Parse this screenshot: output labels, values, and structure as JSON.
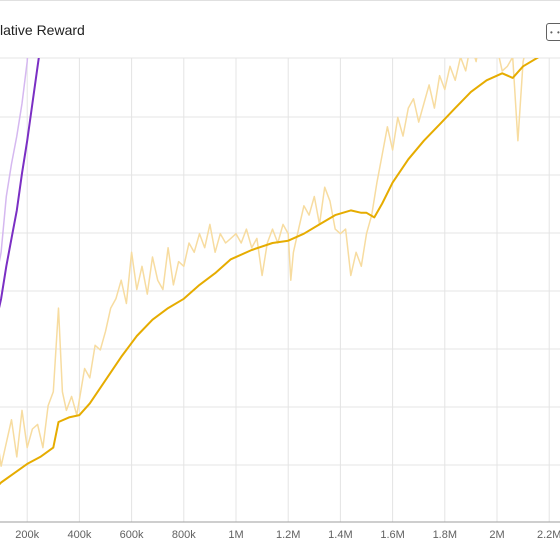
{
  "card": {
    "title": "lative Reward",
    "menu_icon": "expand-icon"
  },
  "chart_data": {
    "type": "line",
    "title": "lative Reward",
    "xlabel": "",
    "ylabel": "",
    "x_ticks": [
      "200k",
      "400k",
      "600k",
      "800k",
      "1M",
      "1.2M",
      "1.4M",
      "1.6M",
      "1.8M",
      "2M",
      "2.2M"
    ],
    "x_tick_values": [
      200000,
      400000,
      600000,
      800000,
      1000000,
      1200000,
      1400000,
      1600000,
      1800000,
      2000000,
      2200000
    ],
    "xlim": [
      0,
      2400000
    ],
    "ylim": [
      0,
      100
    ],
    "grid": true,
    "series": [
      {
        "color": "#e6ac00",
        "raw_color": "#f7dca0",
        "smoothed": [
          [
            0,
            2
          ],
          [
            50000,
            5.5
          ],
          [
            100000,
            8.5
          ],
          [
            150000,
            10.5
          ],
          [
            200000,
            12.5
          ],
          [
            250000,
            14
          ],
          [
            300000,
            16
          ],
          [
            320000,
            21.5
          ],
          [
            360000,
            22.5
          ],
          [
            400000,
            23
          ],
          [
            440000,
            25.5
          ],
          [
            500000,
            30.5
          ],
          [
            560000,
            35.5
          ],
          [
            620000,
            40
          ],
          [
            680000,
            43.5
          ],
          [
            740000,
            46
          ],
          [
            800000,
            48
          ],
          [
            860000,
            51
          ],
          [
            920000,
            53.5
          ],
          [
            980000,
            56.5
          ],
          [
            1060000,
            58.5
          ],
          [
            1140000,
            60
          ],
          [
            1200000,
            60.5
          ],
          [
            1260000,
            62
          ],
          [
            1320000,
            64
          ],
          [
            1380000,
            66
          ],
          [
            1440000,
            67
          ],
          [
            1480000,
            66.5
          ],
          [
            1500000,
            66.5
          ],
          [
            1530000,
            65.5
          ],
          [
            1560000,
            68.5
          ],
          [
            1600000,
            73
          ],
          [
            1660000,
            78
          ],
          [
            1720000,
            82
          ],
          [
            1780000,
            85.5
          ],
          [
            1840000,
            89
          ],
          [
            1900000,
            92.5
          ],
          [
            1960000,
            95
          ],
          [
            2020000,
            96.5
          ],
          [
            2060000,
            95.5
          ],
          [
            2100000,
            98
          ],
          [
            2160000,
            100
          ],
          [
            2220000,
            102.5
          ],
          [
            2280000,
            105
          ],
          [
            2340000,
            107.5
          ],
          [
            2400000,
            108
          ]
        ],
        "raw": [
          [
            0,
            6
          ],
          [
            20000,
            15
          ],
          [
            40000,
            18
          ],
          [
            60000,
            13
          ],
          [
            80000,
            20
          ],
          [
            100000,
            12
          ],
          [
            120000,
            17
          ],
          [
            140000,
            22
          ],
          [
            160000,
            14
          ],
          [
            180000,
            24
          ],
          [
            200000,
            16
          ],
          [
            220000,
            20
          ],
          [
            240000,
            21
          ],
          [
            260000,
            16
          ],
          [
            280000,
            25
          ],
          [
            300000,
            28
          ],
          [
            320000,
            46
          ],
          [
            335000,
            28
          ],
          [
            350000,
            24
          ],
          [
            370000,
            27
          ],
          [
            390000,
            23
          ],
          [
            420000,
            33
          ],
          [
            440000,
            31
          ],
          [
            460000,
            38
          ],
          [
            480000,
            37
          ],
          [
            500000,
            41
          ],
          [
            520000,
            46
          ],
          [
            540000,
            48
          ],
          [
            560000,
            52
          ],
          [
            580000,
            47
          ],
          [
            600000,
            58
          ],
          [
            620000,
            50
          ],
          [
            640000,
            55
          ],
          [
            660000,
            49
          ],
          [
            680000,
            57
          ],
          [
            700000,
            52
          ],
          [
            720000,
            50
          ],
          [
            740000,
            59
          ],
          [
            760000,
            51
          ],
          [
            780000,
            56
          ],
          [
            800000,
            55
          ],
          [
            820000,
            60
          ],
          [
            840000,
            58
          ],
          [
            860000,
            62
          ],
          [
            880000,
            59
          ],
          [
            900000,
            64
          ],
          [
            920000,
            58
          ],
          [
            940000,
            62
          ],
          [
            960000,
            60
          ],
          [
            980000,
            61
          ],
          [
            1000000,
            62
          ],
          [
            1020000,
            60
          ],
          [
            1040000,
            63
          ],
          [
            1060000,
            59
          ],
          [
            1080000,
            61
          ],
          [
            1100000,
            53
          ],
          [
            1120000,
            60
          ],
          [
            1140000,
            63
          ],
          [
            1160000,
            60
          ],
          [
            1180000,
            64
          ],
          [
            1200000,
            62
          ],
          [
            1210000,
            52
          ],
          [
            1220000,
            58
          ],
          [
            1240000,
            63
          ],
          [
            1260000,
            68
          ],
          [
            1280000,
            66
          ],
          [
            1300000,
            70
          ],
          [
            1320000,
            64
          ],
          [
            1340000,
            72
          ],
          [
            1360000,
            69
          ],
          [
            1380000,
            63
          ],
          [
            1400000,
            62
          ],
          [
            1420000,
            63
          ],
          [
            1440000,
            53
          ],
          [
            1460000,
            58
          ],
          [
            1480000,
            55
          ],
          [
            1500000,
            62
          ],
          [
            1520000,
            66
          ],
          [
            1540000,
            73
          ],
          [
            1560000,
            79
          ],
          [
            1580000,
            85
          ],
          [
            1600000,
            80
          ],
          [
            1620000,
            87
          ],
          [
            1640000,
            83
          ],
          [
            1660000,
            89
          ],
          [
            1680000,
            91
          ],
          [
            1700000,
            86
          ],
          [
            1720000,
            90
          ],
          [
            1740000,
            94
          ],
          [
            1760000,
            89
          ],
          [
            1780000,
            96
          ],
          [
            1800000,
            93
          ],
          [
            1820000,
            98
          ],
          [
            1840000,
            95
          ],
          [
            1860000,
            100
          ],
          [
            1880000,
            97
          ],
          [
            1900000,
            103
          ],
          [
            1920000,
            99
          ],
          [
            1940000,
            106
          ],
          [
            1960000,
            101
          ],
          [
            1980000,
            104
          ],
          [
            2000000,
            102
          ],
          [
            2020000,
            97
          ],
          [
            2040000,
            98
          ],
          [
            2060000,
            100
          ],
          [
            2080000,
            82
          ],
          [
            2100000,
            99
          ],
          [
            2120000,
            104
          ],
          [
            2140000,
            102
          ],
          [
            2160000,
            105
          ],
          [
            2180000,
            101
          ],
          [
            2200000,
            106
          ],
          [
            2220000,
            103
          ],
          [
            2240000,
            108
          ],
          [
            2260000,
            104
          ],
          [
            2280000,
            110
          ],
          [
            2300000,
            107
          ],
          [
            2320000,
            111
          ],
          [
            2340000,
            108
          ],
          [
            2360000,
            112
          ],
          [
            2380000,
            109
          ],
          [
            2400000,
            111
          ]
        ]
      },
      {
        "color": "#7b2fc4",
        "raw_color": "#d5b8f0",
        "smoothed": [
          [
            0,
            25
          ],
          [
            20000,
            29
          ],
          [
            40000,
            33
          ],
          [
            60000,
            38
          ],
          [
            80000,
            43
          ],
          [
            100000,
            48
          ],
          [
            120000,
            55
          ],
          [
            140000,
            61
          ],
          [
            160000,
            67
          ],
          [
            180000,
            75
          ],
          [
            200000,
            82
          ],
          [
            220000,
            90
          ],
          [
            240000,
            98
          ],
          [
            260000,
            106
          ],
          [
            280000,
            116
          ]
        ],
        "raw": [
          [
            0,
            25
          ],
          [
            20000,
            32
          ],
          [
            40000,
            36
          ],
          [
            60000,
            46
          ],
          [
            80000,
            52
          ],
          [
            100000,
            58
          ],
          [
            120000,
            70
          ],
          [
            140000,
            77
          ],
          [
            160000,
            83
          ],
          [
            180000,
            90
          ],
          [
            200000,
            99
          ],
          [
            210000,
            108
          ],
          [
            220000,
            112
          ],
          [
            240000,
            122
          ],
          [
            250000,
            130
          ]
        ]
      }
    ]
  }
}
